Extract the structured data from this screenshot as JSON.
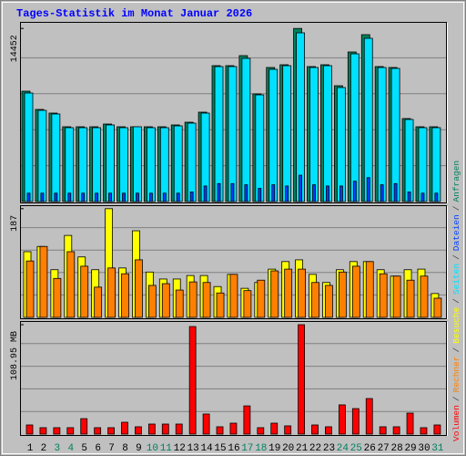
{
  "chart_data": [
    {
      "type": "bar",
      "title": "Tages-Statistik im Monat Januar 2026",
      "ylim": [
        0,
        15000
      ],
      "yticks": [
        14452
      ],
      "series": [
        {
          "name": "Anfragen",
          "color": "#00805c",
          "values": [
            9213,
            7690,
            7386,
            6244,
            6244,
            6244,
            6472,
            6244,
            6244,
            6244,
            6244,
            6396,
            6624,
            7462,
            11345,
            11345,
            12182,
            8985,
            11193,
            11421,
            14452,
            11269,
            11421,
            9670,
            12487,
            13934,
            11269,
            11193,
            6929,
            6244,
            6244
          ]
        },
        {
          "name": "Dateien",
          "color": "#0040ff",
          "values": [
            700,
            700,
            700,
            700,
            700,
            700,
            700,
            700,
            700,
            700,
            700,
            700,
            800,
            1300,
            1500,
            1500,
            1400,
            1100,
            1400,
            1300,
            2200,
            1400,
            1300,
            1300,
            1700,
            2000,
            1400,
            1500,
            800,
            700,
            700
          ]
        },
        {
          "name": "Seiten",
          "color": "#00e0ff",
          "values": [
            9061,
            7614,
            7310,
            6167,
            6167,
            6167,
            6396,
            6167,
            6244,
            6167,
            6167,
            6320,
            6548,
            7386,
            11269,
            11269,
            11954,
            8908,
            11040,
            11345,
            14086,
            11193,
            11345,
            9518,
            12335,
            13629,
            11193,
            11117,
            6853,
            6167,
            6167
          ]
        }
      ]
    },
    {
      "type": "bar",
      "ylim": [
        0,
        193
      ],
      "yticks": [
        187
      ],
      "series": [
        {
          "name": "Besuche",
          "color": "#ffff00",
          "values": [
            113,
            122,
            82,
            141,
            104,
            82,
            187,
            85,
            149,
            78,
            66,
            66,
            72,
            72,
            53,
            74,
            50,
            60,
            83,
            96,
            99,
            74,
            60,
            82,
            96,
            96,
            82,
            71,
            82,
            83,
            41
          ]
        },
        {
          "name": "Rechner",
          "color": "#ff8000",
          "values": [
            97,
            122,
            67,
            113,
            88,
            52,
            85,
            75,
            99,
            55,
            58,
            47,
            61,
            60,
            42,
            74,
            46,
            64,
            80,
            83,
            83,
            60,
            55,
            78,
            88,
            96,
            75,
            71,
            64,
            71,
            33
          ]
        }
      ]
    },
    {
      "type": "bar",
      "ylim": [
        0,
        112.6
      ],
      "yticks": [
        {
          "value": 108.95,
          "label": "108.95 MB"
        }
      ],
      "categories": [
        "1",
        "2",
        "3",
        "4",
        "5",
        "6",
        "7",
        "8",
        "9",
        "10",
        "11",
        "12",
        "13",
        "14",
        "15",
        "16",
        "17",
        "18",
        "19",
        "20",
        "21",
        "22",
        "23",
        "24",
        "25",
        "26",
        "27",
        "28",
        "29",
        "30",
        "31"
      ],
      "category_colors": [
        "#000000",
        "#000000",
        "#008060",
        "#008060",
        "#000000",
        "#000000",
        "#000000",
        "#000000",
        "#000000",
        "#008060",
        "#008060",
        "#000000",
        "#000000",
        "#000000",
        "#000000",
        "#000000",
        "#008060",
        "#008060",
        "#000000",
        "#000000",
        "#000000",
        "#000000",
        "#000000",
        "#008060",
        "#008060",
        "#000000",
        "#000000",
        "#000000",
        "#000000",
        "#000000",
        "#008060"
      ],
      "series": [
        {
          "name": "Volumen",
          "color": "#ff0000",
          "values": [
            9.1,
            6.4,
            6.4,
            6.4,
            15.4,
            6.4,
            6.4,
            11.8,
            7.3,
            10,
            10,
            10,
            107.1,
            20,
            7.3,
            10.9,
            28.1,
            6.4,
            10.9,
            8.2,
            108.95,
            9.1,
            7.3,
            29.1,
            25.4,
            35.4,
            7.3,
            7.3,
            20.9,
            6.4,
            9.1
          ]
        }
      ]
    }
  ],
  "legend_separator": "/"
}
